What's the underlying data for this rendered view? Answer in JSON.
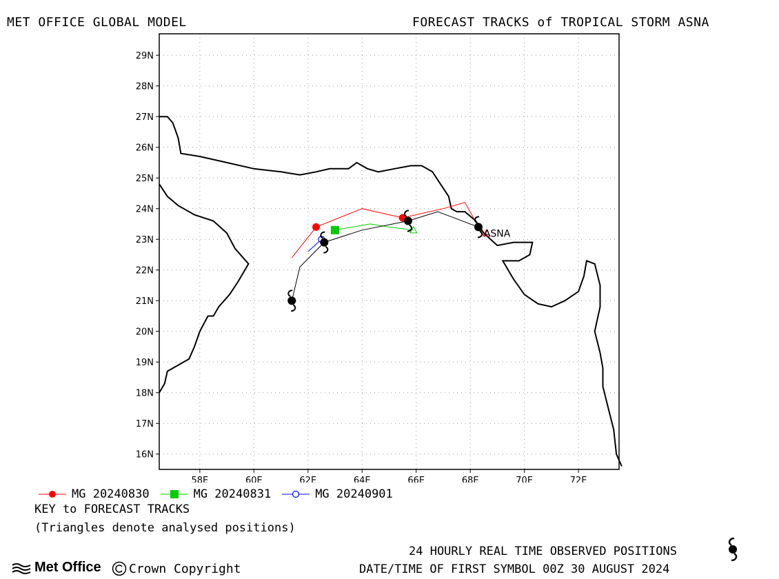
{
  "header": {
    "left_title": "MET OFFICE GLOBAL MODEL",
    "right_title": "FORECAST TRACKS of TROPICAL STORM ASNA"
  },
  "map": {
    "lon_range": [
      56.5,
      73.5
    ],
    "lat_range": [
      15.5,
      29.7
    ],
    "grid": true,
    "lat_labels": [
      "16N",
      "17N",
      "18N",
      "19N",
      "20N",
      "21N",
      "22N",
      "23N",
      "24N",
      "25N",
      "26N",
      "27N",
      "28N",
      "29N"
    ],
    "lon_labels": [
      "58E",
      "60E",
      "62E",
      "64E",
      "66E",
      "68E",
      "70E",
      "72E"
    ],
    "storm_label": "ASNA"
  },
  "chart_data": {
    "type": "map-tracks",
    "observed": {
      "name": "24 HOURLY REAL TIME OBSERVED POSITIONS",
      "points": [
        [
          61.4,
          21.0
        ],
        [
          62.6,
          22.9
        ],
        [
          65.7,
          23.6
        ],
        [
          68.3,
          23.4
        ]
      ],
      "track": [
        [
          61.4,
          21.0
        ],
        [
          61.7,
          22.1
        ],
        [
          62.6,
          22.9
        ],
        [
          64.0,
          23.3
        ],
        [
          65.7,
          23.6
        ],
        [
          66.8,
          23.9
        ],
        [
          68.3,
          23.4
        ],
        [
          68.6,
          23.1
        ]
      ]
    },
    "forecasts": [
      {
        "name": "MG 20240830",
        "color": "#ff0000",
        "marker": "filled-circle",
        "track": [
          [
            61.4,
            22.4
          ],
          [
            62.3,
            23.4
          ],
          [
            64.0,
            24.0
          ],
          [
            65.5,
            23.7
          ],
          [
            67.0,
            24.0
          ],
          [
            67.8,
            24.2
          ],
          [
            68.5,
            23.1
          ]
        ],
        "markers": [
          [
            62.3,
            23.4
          ],
          [
            65.5,
            23.7
          ]
        ],
        "end_triangle": [
          68.6,
          23.2
        ]
      },
      {
        "name": "MG 20240831",
        "color": "#00cc00",
        "marker": "filled-square",
        "track": [
          [
            63.0,
            23.3
          ],
          [
            64.3,
            23.5
          ],
          [
            65.0,
            23.4
          ],
          [
            65.9,
            23.3
          ]
        ],
        "markers": [
          [
            63.0,
            23.3
          ]
        ],
        "end_triangle": [
          65.9,
          23.3
        ]
      },
      {
        "name": "MG 20240901",
        "color": "#0000ff",
        "marker": "open-circle",
        "track": [
          [
            62.0,
            22.6
          ],
          [
            62.5,
            23.0
          ]
        ],
        "markers": [
          [
            62.5,
            23.0
          ]
        ],
        "end_triangle": []
      }
    ]
  },
  "legend": {
    "entries": [
      {
        "label": "MG 20240830",
        "color": "#ff0000",
        "marker": "filled-circle"
      },
      {
        "label": "MG 20240831",
        "color": "#00cc00",
        "marker": "filled-square"
      },
      {
        "label": "MG 20240901",
        "color": "#0000ff",
        "marker": "open-circle"
      }
    ]
  },
  "footer": {
    "key_title": "KEY to FORECAST TRACKS",
    "key_note": "(Triangles denote analysed positions)",
    "observed_label": "24 HOURLY REAL TIME OBSERVED POSITIONS",
    "datetime": "DATE/TIME OF FIRST SYMBOL 00Z 30 AUGUST 2024",
    "logo_text": "Met Office",
    "copyright": "Crown Copyright"
  }
}
